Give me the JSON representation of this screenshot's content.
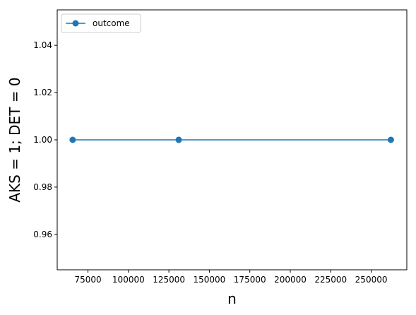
{
  "chart_data": {
    "type": "line",
    "xlabel": "n",
    "ylabel": "AKS = 1; DET = 0",
    "xlim": [
      56000,
      272000
    ],
    "ylim": [
      0.945,
      1.055
    ],
    "xticks": [
      75000,
      100000,
      125000,
      150000,
      175000,
      200000,
      225000,
      250000
    ],
    "yticks": [
      0.96,
      0.98,
      1.0,
      1.02,
      1.04
    ],
    "xtick_labels": [
      "75000",
      "100000",
      "125000",
      "150000",
      "175000",
      "200000",
      "225000",
      "250000"
    ],
    "ytick_labels": [
      "0.96",
      "0.98",
      "1.00",
      "1.02",
      "1.04"
    ],
    "grid": false,
    "legend_position": "top-left",
    "series": [
      {
        "name": "outcome",
        "color": "#1f77b4",
        "marker": "circle",
        "x": [
          65536,
          131072,
          262144
        ],
        "y": [
          1,
          1,
          1
        ]
      }
    ]
  }
}
